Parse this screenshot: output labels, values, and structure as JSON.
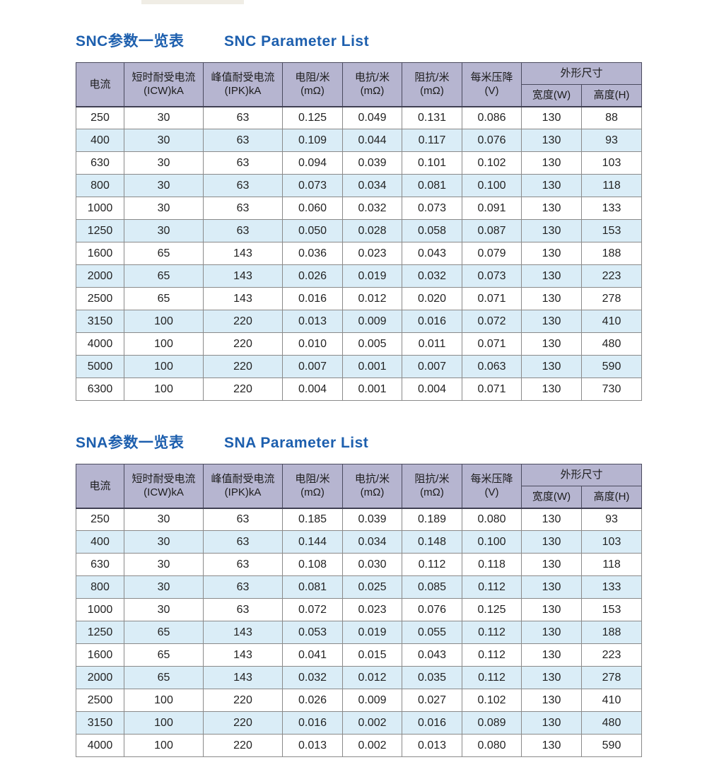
{
  "colors": {
    "title_blue": "#1d5fae",
    "header_bg": "#b6b5d0",
    "row_alt_bg": "#daedf7",
    "header_border": "#4a4a5e",
    "body_border": "#8a8a8a",
    "text": "#232323"
  },
  "tables": [
    {
      "title_zh": "SNC参数一览表",
      "title_en": "SNC Parameter List",
      "header": {
        "current": "电流",
        "icw_line1": "短时耐受电流",
        "icw_line2": "(ICW)kA",
        "ipk_line1": "峰值耐受电流",
        "ipk_line2": "(IPK)kA",
        "resistance_line1": "电阻/米",
        "resistance_line2": "(mΩ)",
        "reactance_line1": "电抗/米",
        "reactance_line2": "(mΩ)",
        "impedance_line1": "阻抗/米",
        "impedance_line2": "(mΩ)",
        "voltage_drop_line1": "每米压降",
        "voltage_drop_line2": "(V)",
        "dimensions": "外形尺寸",
        "width_label": "宽度(W)",
        "height_label": "高度(H)"
      },
      "rows": [
        [
          "250",
          "30",
          "63",
          "0.125",
          "0.049",
          "0.131",
          "0.086",
          "130",
          "88"
        ],
        [
          "400",
          "30",
          "63",
          "0.109",
          "0.044",
          "0.117",
          "0.076",
          "130",
          "93"
        ],
        [
          "630",
          "30",
          "63",
          "0.094",
          "0.039",
          "0.101",
          "0.102",
          "130",
          "103"
        ],
        [
          "800",
          "30",
          "63",
          "0.073",
          "0.034",
          "0.081",
          "0.100",
          "130",
          "118"
        ],
        [
          "1000",
          "30",
          "63",
          "0.060",
          "0.032",
          "0.073",
          "0.091",
          "130",
          "133"
        ],
        [
          "1250",
          "30",
          "63",
          "0.050",
          "0.028",
          "0.058",
          "0.087",
          "130",
          "153"
        ],
        [
          "1600",
          "65",
          "143",
          "0.036",
          "0.023",
          "0.043",
          "0.079",
          "130",
          "188"
        ],
        [
          "2000",
          "65",
          "143",
          "0.026",
          "0.019",
          "0.032",
          "0.073",
          "130",
          "223"
        ],
        [
          "2500",
          "65",
          "143",
          "0.016",
          "0.012",
          "0.020",
          "0.071",
          "130",
          "278"
        ],
        [
          "3150",
          "100",
          "220",
          "0.013",
          "0.009",
          "0.016",
          "0.072",
          "130",
          "410"
        ],
        [
          "4000",
          "100",
          "220",
          "0.010",
          "0.005",
          "0.011",
          "0.071",
          "130",
          "480"
        ],
        [
          "5000",
          "100",
          "220",
          "0.007",
          "0.001",
          "0.007",
          "0.063",
          "130",
          "590"
        ],
        [
          "6300",
          "100",
          "220",
          "0.004",
          "0.001",
          "0.004",
          "0.071",
          "130",
          "730"
        ]
      ]
    },
    {
      "title_zh": "SNA参数一览表",
      "title_en": "SNA Parameter List",
      "header": {
        "current": "电流",
        "icw_line1": "短时耐受电流",
        "icw_line2": "(ICW)kA",
        "ipk_line1": "峰值耐受电流",
        "ipk_line2": "(IPK)kA",
        "resistance_line1": "电阻/米",
        "resistance_line2": "(mΩ)",
        "reactance_line1": "电抗/米",
        "reactance_line2": "(mΩ)",
        "impedance_line1": "阻抗/米",
        "impedance_line2": "(mΩ)",
        "voltage_drop_line1": "每米压降",
        "voltage_drop_line2": "(V)",
        "dimensions": "外形尺寸",
        "width_label": "宽度(W)",
        "height_label": "高度(H)"
      },
      "rows": [
        [
          "250",
          "30",
          "63",
          "0.185",
          "0.039",
          "0.189",
          "0.080",
          "130",
          "93"
        ],
        [
          "400",
          "30",
          "63",
          "0.144",
          "0.034",
          "0.148",
          "0.100",
          "130",
          "103"
        ],
        [
          "630",
          "30",
          "63",
          "0.108",
          "0.030",
          "0.112",
          "0.118",
          "130",
          "118"
        ],
        [
          "800",
          "30",
          "63",
          "0.081",
          "0.025",
          "0.085",
          "0.112",
          "130",
          "133"
        ],
        [
          "1000",
          "30",
          "63",
          "0.072",
          "0.023",
          "0.076",
          "0.125",
          "130",
          "153"
        ],
        [
          "1250",
          "65",
          "143",
          "0.053",
          "0.019",
          "0.055",
          "0.112",
          "130",
          "188"
        ],
        [
          "1600",
          "65",
          "143",
          "0.041",
          "0.015",
          "0.043",
          "0.112",
          "130",
          "223"
        ],
        [
          "2000",
          "65",
          "143",
          "0.032",
          "0.012",
          "0.035",
          "0.112",
          "130",
          "278"
        ],
        [
          "2500",
          "100",
          "220",
          "0.026",
          "0.009",
          "0.027",
          "0.102",
          "130",
          "410"
        ],
        [
          "3150",
          "100",
          "220",
          "0.016",
          "0.002",
          "0.016",
          "0.089",
          "130",
          "480"
        ],
        [
          "4000",
          "100",
          "220",
          "0.013",
          "0.002",
          "0.013",
          "0.080",
          "130",
          "590"
        ]
      ]
    }
  ]
}
